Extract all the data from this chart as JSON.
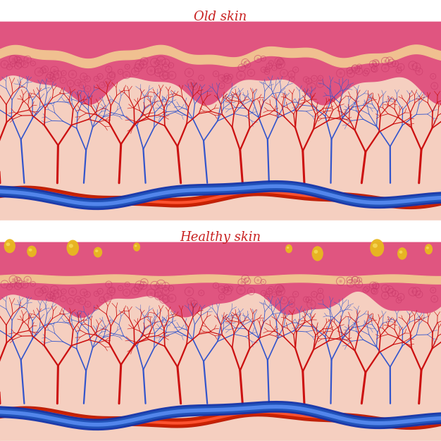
{
  "title_old": "Old skin",
  "title_healthy": "Healthy skin",
  "title_color": "#c82020",
  "title_fontsize": 13,
  "bg_color": "#ffffff",
  "dermis_color": "#f5cfc0",
  "epidermis_color": "#e05580",
  "epidermis_texture_color": "#c83868",
  "stratum_color": "#f0c090",
  "artery_color": "#cc1111",
  "vein_color": "#3355cc",
  "artery_main_color": "#cc2200",
  "vein_main_color": "#2255bb",
  "collagen_color": "#e8b820",
  "collagen_highlight": "#f8e060",
  "collagen_shadow": "#b08010"
}
